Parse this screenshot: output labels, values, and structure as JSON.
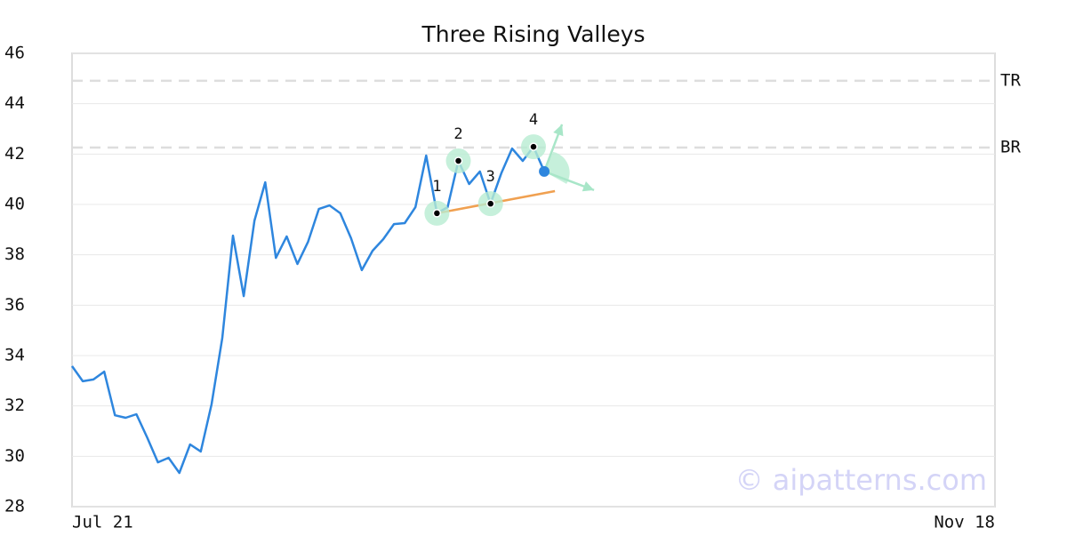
{
  "chart_data": {
    "type": "line",
    "title": "Three Rising Valleys",
    "categories": [
      "Jul 21",
      null,
      null,
      null,
      null,
      null,
      null,
      null,
      null,
      null,
      null,
      null,
      null,
      null,
      null,
      null,
      null,
      null,
      null,
      null,
      null,
      null,
      null,
      null,
      null,
      null,
      null,
      null,
      null,
      null,
      null,
      null,
      null,
      null,
      null,
      null,
      null,
      null,
      null,
      null,
      null,
      null,
      null,
      null,
      null,
      null,
      null,
      null,
      null,
      null,
      null,
      null,
      null,
      null,
      null,
      null,
      null,
      null,
      null,
      null,
      null,
      null,
      null,
      null,
      null,
      null,
      null,
      null,
      null,
      null,
      null,
      null,
      null,
      null,
      null,
      null,
      null,
      null,
      null,
      null,
      null,
      null,
      null,
      null,
      null,
      null,
      "Nov 18"
    ],
    "series": [
      {
        "color": "#2e86de",
        "values": [
          33.58,
          32.98,
          33.05,
          33.36,
          31.63,
          31.53,
          31.67,
          30.75,
          29.76,
          29.94,
          29.34,
          30.47,
          30.19,
          32.06,
          34.7,
          38.76,
          36.36,
          39.36,
          40.88,
          37.88,
          38.73,
          37.64,
          38.52,
          39.82,
          39.96,
          39.65,
          38.66,
          37.39,
          38.16,
          38.62,
          39.22,
          39.26,
          39.89,
          41.94,
          39.65,
          39.89,
          41.73,
          40.81,
          41.31,
          40.03,
          41.24,
          42.22,
          41.73,
          42.29,
          41.31,
          null,
          null,
          null,
          null,
          null,
          null,
          null,
          null,
          null,
          null,
          null,
          null,
          null,
          null,
          null,
          null,
          null,
          null,
          null,
          null,
          null,
          null,
          null,
          null,
          null,
          null,
          null,
          null,
          null,
          null,
          null,
          null,
          null,
          null,
          null,
          null,
          null,
          null,
          null,
          null,
          null,
          null
        ]
      }
    ],
    "annotations": [
      {
        "text": "1",
        "point": 34
      },
      {
        "text": "2",
        "point": 36
      },
      {
        "text": "3",
        "point": 39
      },
      {
        "text": "4",
        "point": 43
      }
    ],
    "support_line": {
      "x": [
        34,
        45
      ],
      "y": [
        39.65,
        40.53
      ],
      "color": "#f0a050"
    },
    "levels": [
      {
        "label": "TR",
        "value": 44.91
      },
      {
        "label": "BR",
        "value": 42.26
      }
    ],
    "ylim": [
      28,
      46
    ],
    "yticks": [
      28,
      30,
      32,
      34,
      36,
      38,
      40,
      42,
      44,
      46
    ],
    "grid": true,
    "watermark": "© aipatterns.com"
  }
}
